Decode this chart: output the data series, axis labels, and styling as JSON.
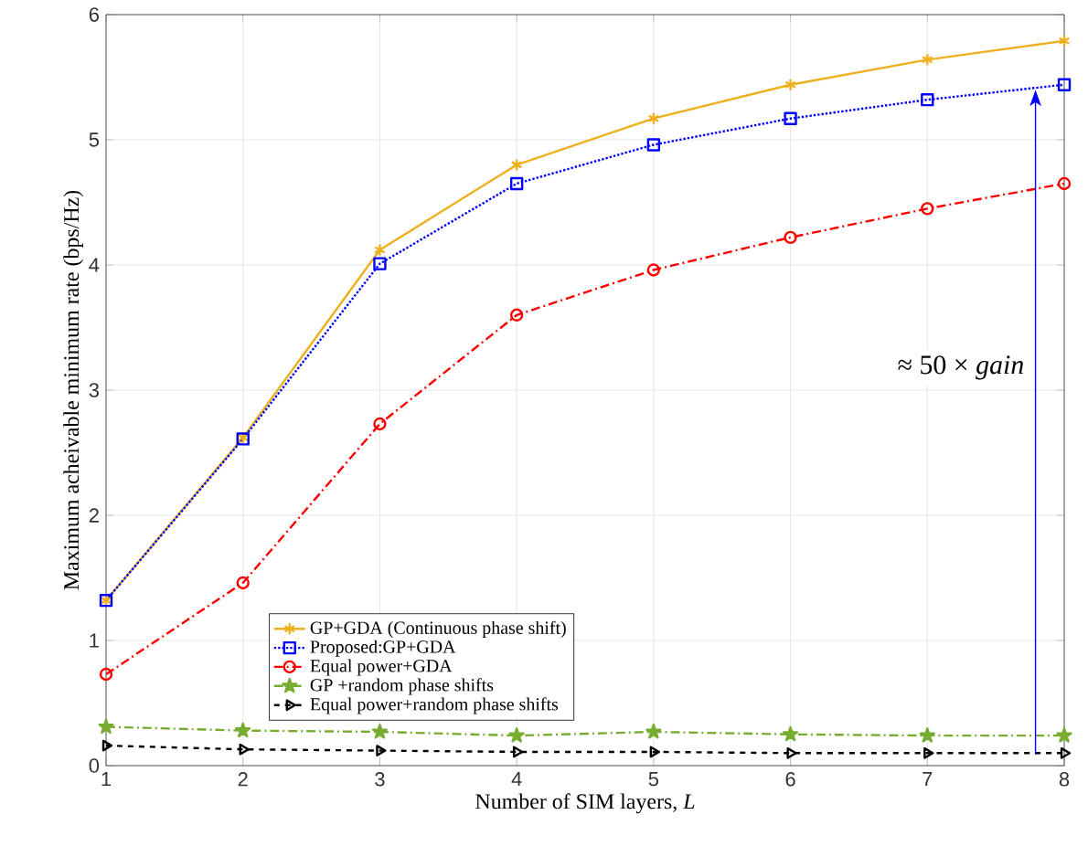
{
  "chart_data": {
    "type": "line",
    "xlabel": "Number of SIM layers, *L*",
    "ylabel": "Maximum acheivable minimum rate (bps/Hz)",
    "x": [
      1,
      2,
      3,
      4,
      5,
      6,
      7,
      8
    ],
    "xlim": [
      1,
      8
    ],
    "xticks": [
      1,
      2,
      3,
      4,
      5,
      6,
      7,
      8
    ],
    "ylim": [
      0,
      6
    ],
    "yticks": [
      0,
      1,
      2,
      3,
      4,
      5,
      6
    ],
    "grid": true,
    "legend": "bottom",
    "series": [
      {
        "name": "GP+GDA (Continuous phase shift)",
        "color": "#edb120",
        "marker": "cross",
        "line_style": "solid",
        "values": [
          1.32,
          2.62,
          4.12,
          4.8,
          5.17,
          5.44,
          5.64,
          5.79
        ]
      },
      {
        "name": "Proposed:GP+GDA",
        "color": "#0000ff",
        "marker": "square",
        "line_style": "dotted",
        "values": [
          1.32,
          2.61,
          4.01,
          4.65,
          4.96,
          5.17,
          5.32,
          5.44
        ]
      },
      {
        "name": "Equal power+GDA",
        "color": "#ff0000",
        "marker": "circle",
        "line_style": "dashdot",
        "values": [
          0.73,
          1.46,
          2.73,
          3.6,
          3.96,
          4.22,
          4.45,
          4.65
        ]
      },
      {
        "name": "GP +random phase shifts",
        "color": "#77ac30",
        "marker": "star",
        "line_style": "dashdot",
        "values": [
          0.31,
          0.28,
          0.27,
          0.24,
          0.27,
          0.25,
          0.24,
          0.24
        ]
      },
      {
        "name": "Equal power+random phase shifts",
        "color": "#000000",
        "marker": "triangle",
        "line_style": "dashed",
        "values": [
          0.16,
          0.13,
          0.12,
          0.11,
          0.11,
          0.1,
          0.1,
          0.1
        ]
      }
    ],
    "annotations": [
      "≈ 50 × *gain*"
    ]
  }
}
